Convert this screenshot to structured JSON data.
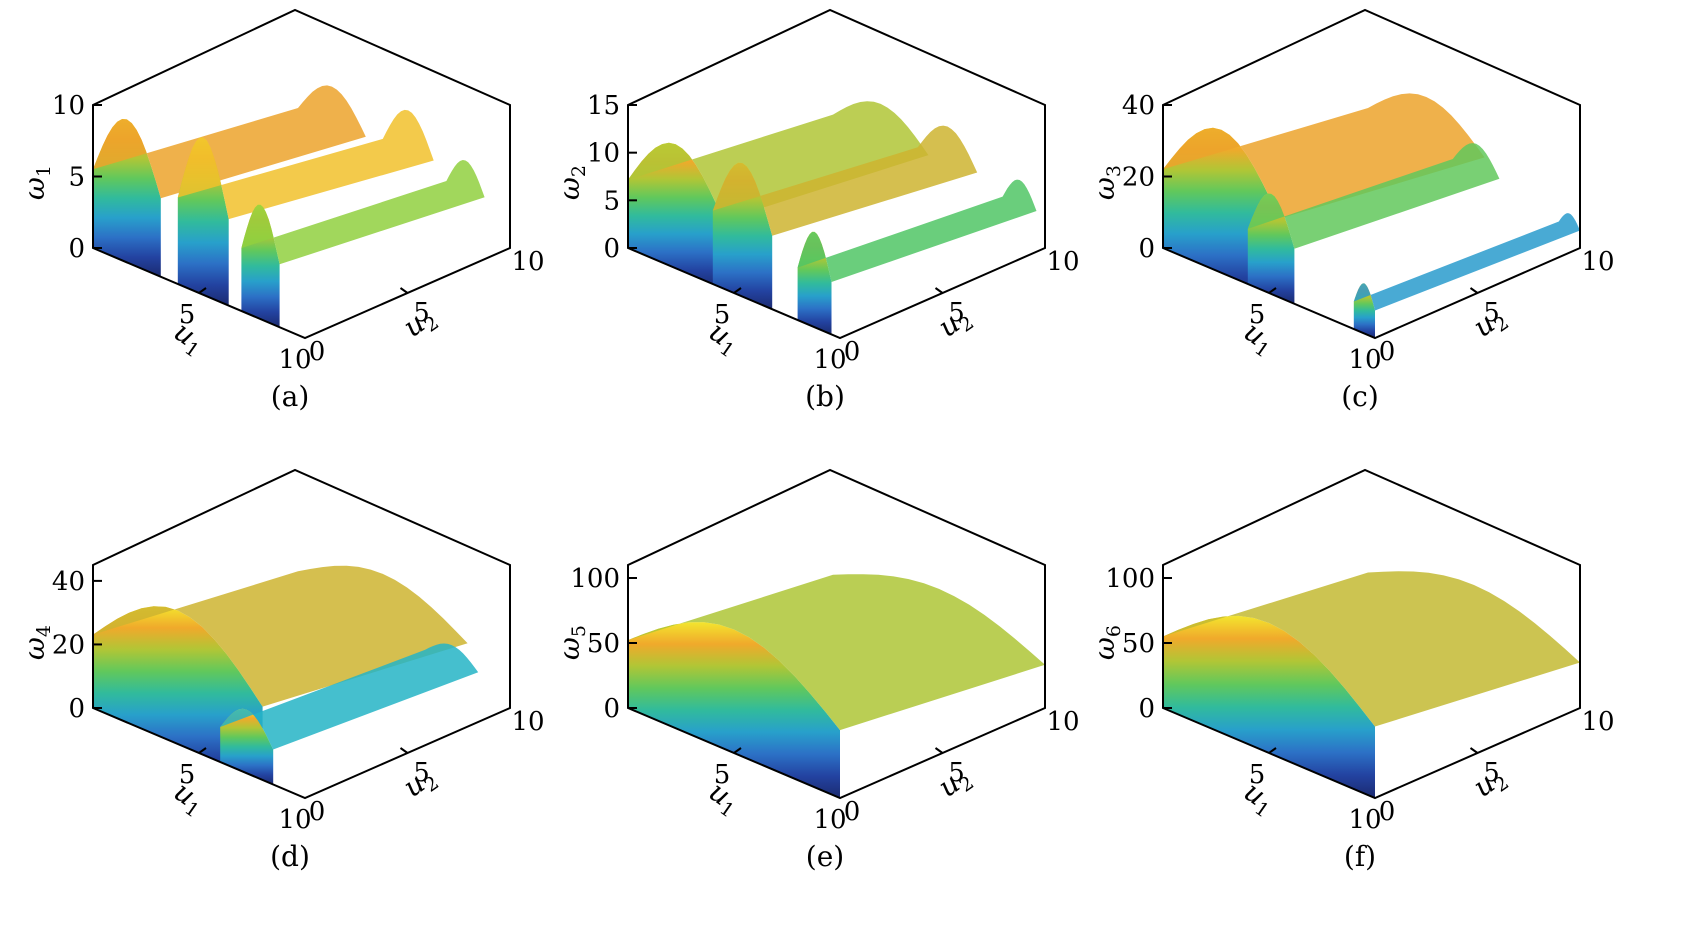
{
  "colors": {
    "colormap": [
      "#1b2a70",
      "#2447a8",
      "#2f7fd0",
      "#23b4c8",
      "#3ec270",
      "#9ad23a",
      "#f0a02a",
      "#f3e52e"
    ],
    "frame": "#000000"
  },
  "chart_data": [
    {
      "type": "surface",
      "caption": "(a)",
      "xlabel": "u",
      "xlabel_sub": "1",
      "ylabel": "u",
      "ylabel_sub": "2",
      "zlabel": "ω",
      "zlabel_sub": "1",
      "xlim": [
        0,
        10
      ],
      "ylim": [
        0,
        10
      ],
      "zlim": [
        0,
        10
      ],
      "x_ticks": [
        "5",
        "10"
      ],
      "y_ticks": [
        "0",
        "5",
        "10"
      ],
      "z_ticks": [
        "0",
        "5",
        "10"
      ],
      "ridges": [
        {
          "u1": 0,
          "peak": 10,
          "width": 3.2
        },
        {
          "u1": 4,
          "peak": 11,
          "width": 2.4
        },
        {
          "u1": 7,
          "peak": 8,
          "width": 1.8
        }
      ]
    },
    {
      "type": "surface",
      "caption": "(b)",
      "xlabel": "u",
      "xlabel_sub": "1",
      "ylabel": "u",
      "ylabel_sub": "2",
      "zlabel": "ω",
      "zlabel_sub": "2",
      "xlim": [
        0,
        10
      ],
      "ylim": [
        0,
        10
      ],
      "zlim": [
        0,
        15
      ],
      "x_ticks": [
        "5",
        "10"
      ],
      "y_ticks": [
        "0",
        "5",
        "10"
      ],
      "z_ticks": [
        "0",
        "5",
        "10",
        "15"
      ],
      "ridges": [
        {
          "u1": 0,
          "peak": 13,
          "width": 4.5
        },
        {
          "u1": 4,
          "peak": 14,
          "width": 2.8
        },
        {
          "u1": 8,
          "peak": 10,
          "width": 1.6
        }
      ]
    },
    {
      "type": "surface",
      "caption": "(c)",
      "xlabel": "u",
      "xlabel_sub": "1",
      "ylabel": "u",
      "ylabel_sub": "2",
      "zlabel": "ω",
      "zlabel_sub": "3",
      "xlim": [
        0,
        10
      ],
      "ylim": [
        0,
        10
      ],
      "zlim": [
        0,
        40
      ],
      "x_ticks": [
        "5",
        "10"
      ],
      "y_ticks": [
        "0",
        "5",
        "10"
      ],
      "z_ticks": [
        "0",
        "20",
        "40"
      ],
      "ridges": [
        {
          "u1": 0,
          "peak": 40,
          "width": 5.5
        },
        {
          "u1": 4,
          "peak": 28,
          "width": 2.2
        },
        {
          "u1": 9,
          "peak": 14,
          "width": 1.2
        }
      ]
    },
    {
      "type": "surface",
      "caption": "(d)",
      "xlabel": "u",
      "xlabel_sub": "1",
      "ylabel": "u",
      "ylabel_sub": "2",
      "zlabel": "ω",
      "zlabel_sub": "4",
      "xlim": [
        0,
        10
      ],
      "ylim": [
        0,
        10
      ],
      "zlim": [
        0,
        45
      ],
      "x_ticks": [
        "5",
        "10"
      ],
      "y_ticks": [
        "0",
        "5",
        "10"
      ],
      "z_ticks": [
        "0",
        "20",
        "40"
      ],
      "ridges": [
        {
          "u1": 0,
          "peak": 42,
          "width": 8.0
        },
        {
          "u1": 6,
          "peak": 20,
          "width": 2.5
        }
      ]
    },
    {
      "type": "surface",
      "caption": "(e)",
      "xlabel": "u",
      "xlabel_sub": "1",
      "ylabel": "u",
      "ylabel_sub": "2",
      "zlabel": "ω",
      "zlabel_sub": "5",
      "xlim": [
        0,
        10
      ],
      "ylim": [
        0,
        10
      ],
      "zlim": [
        0,
        110
      ],
      "x_ticks": [
        "5",
        "10"
      ],
      "y_ticks": [
        "0",
        "5",
        "10"
      ],
      "z_ticks": [
        "0",
        "50",
        "100"
      ],
      "ridges": [
        {
          "u1": 0,
          "peak": 95,
          "width": 11.0
        }
      ]
    },
    {
      "type": "surface",
      "caption": "(f)",
      "xlabel": "u",
      "xlabel_sub": "1",
      "ylabel": "u",
      "ylabel_sub": "2",
      "zlabel": "ω",
      "zlabel_sub": "6",
      "xlim": [
        0,
        10
      ],
      "ylim": [
        0,
        10
      ],
      "zlim": [
        0,
        110
      ],
      "x_ticks": [
        "5",
        "10"
      ],
      "y_ticks": [
        "0",
        "5",
        "10"
      ],
      "z_ticks": [
        "0",
        "50",
        "100"
      ],
      "ridges": [
        {
          "u1": 0,
          "peak": 100,
          "width": 14.0
        }
      ]
    }
  ]
}
